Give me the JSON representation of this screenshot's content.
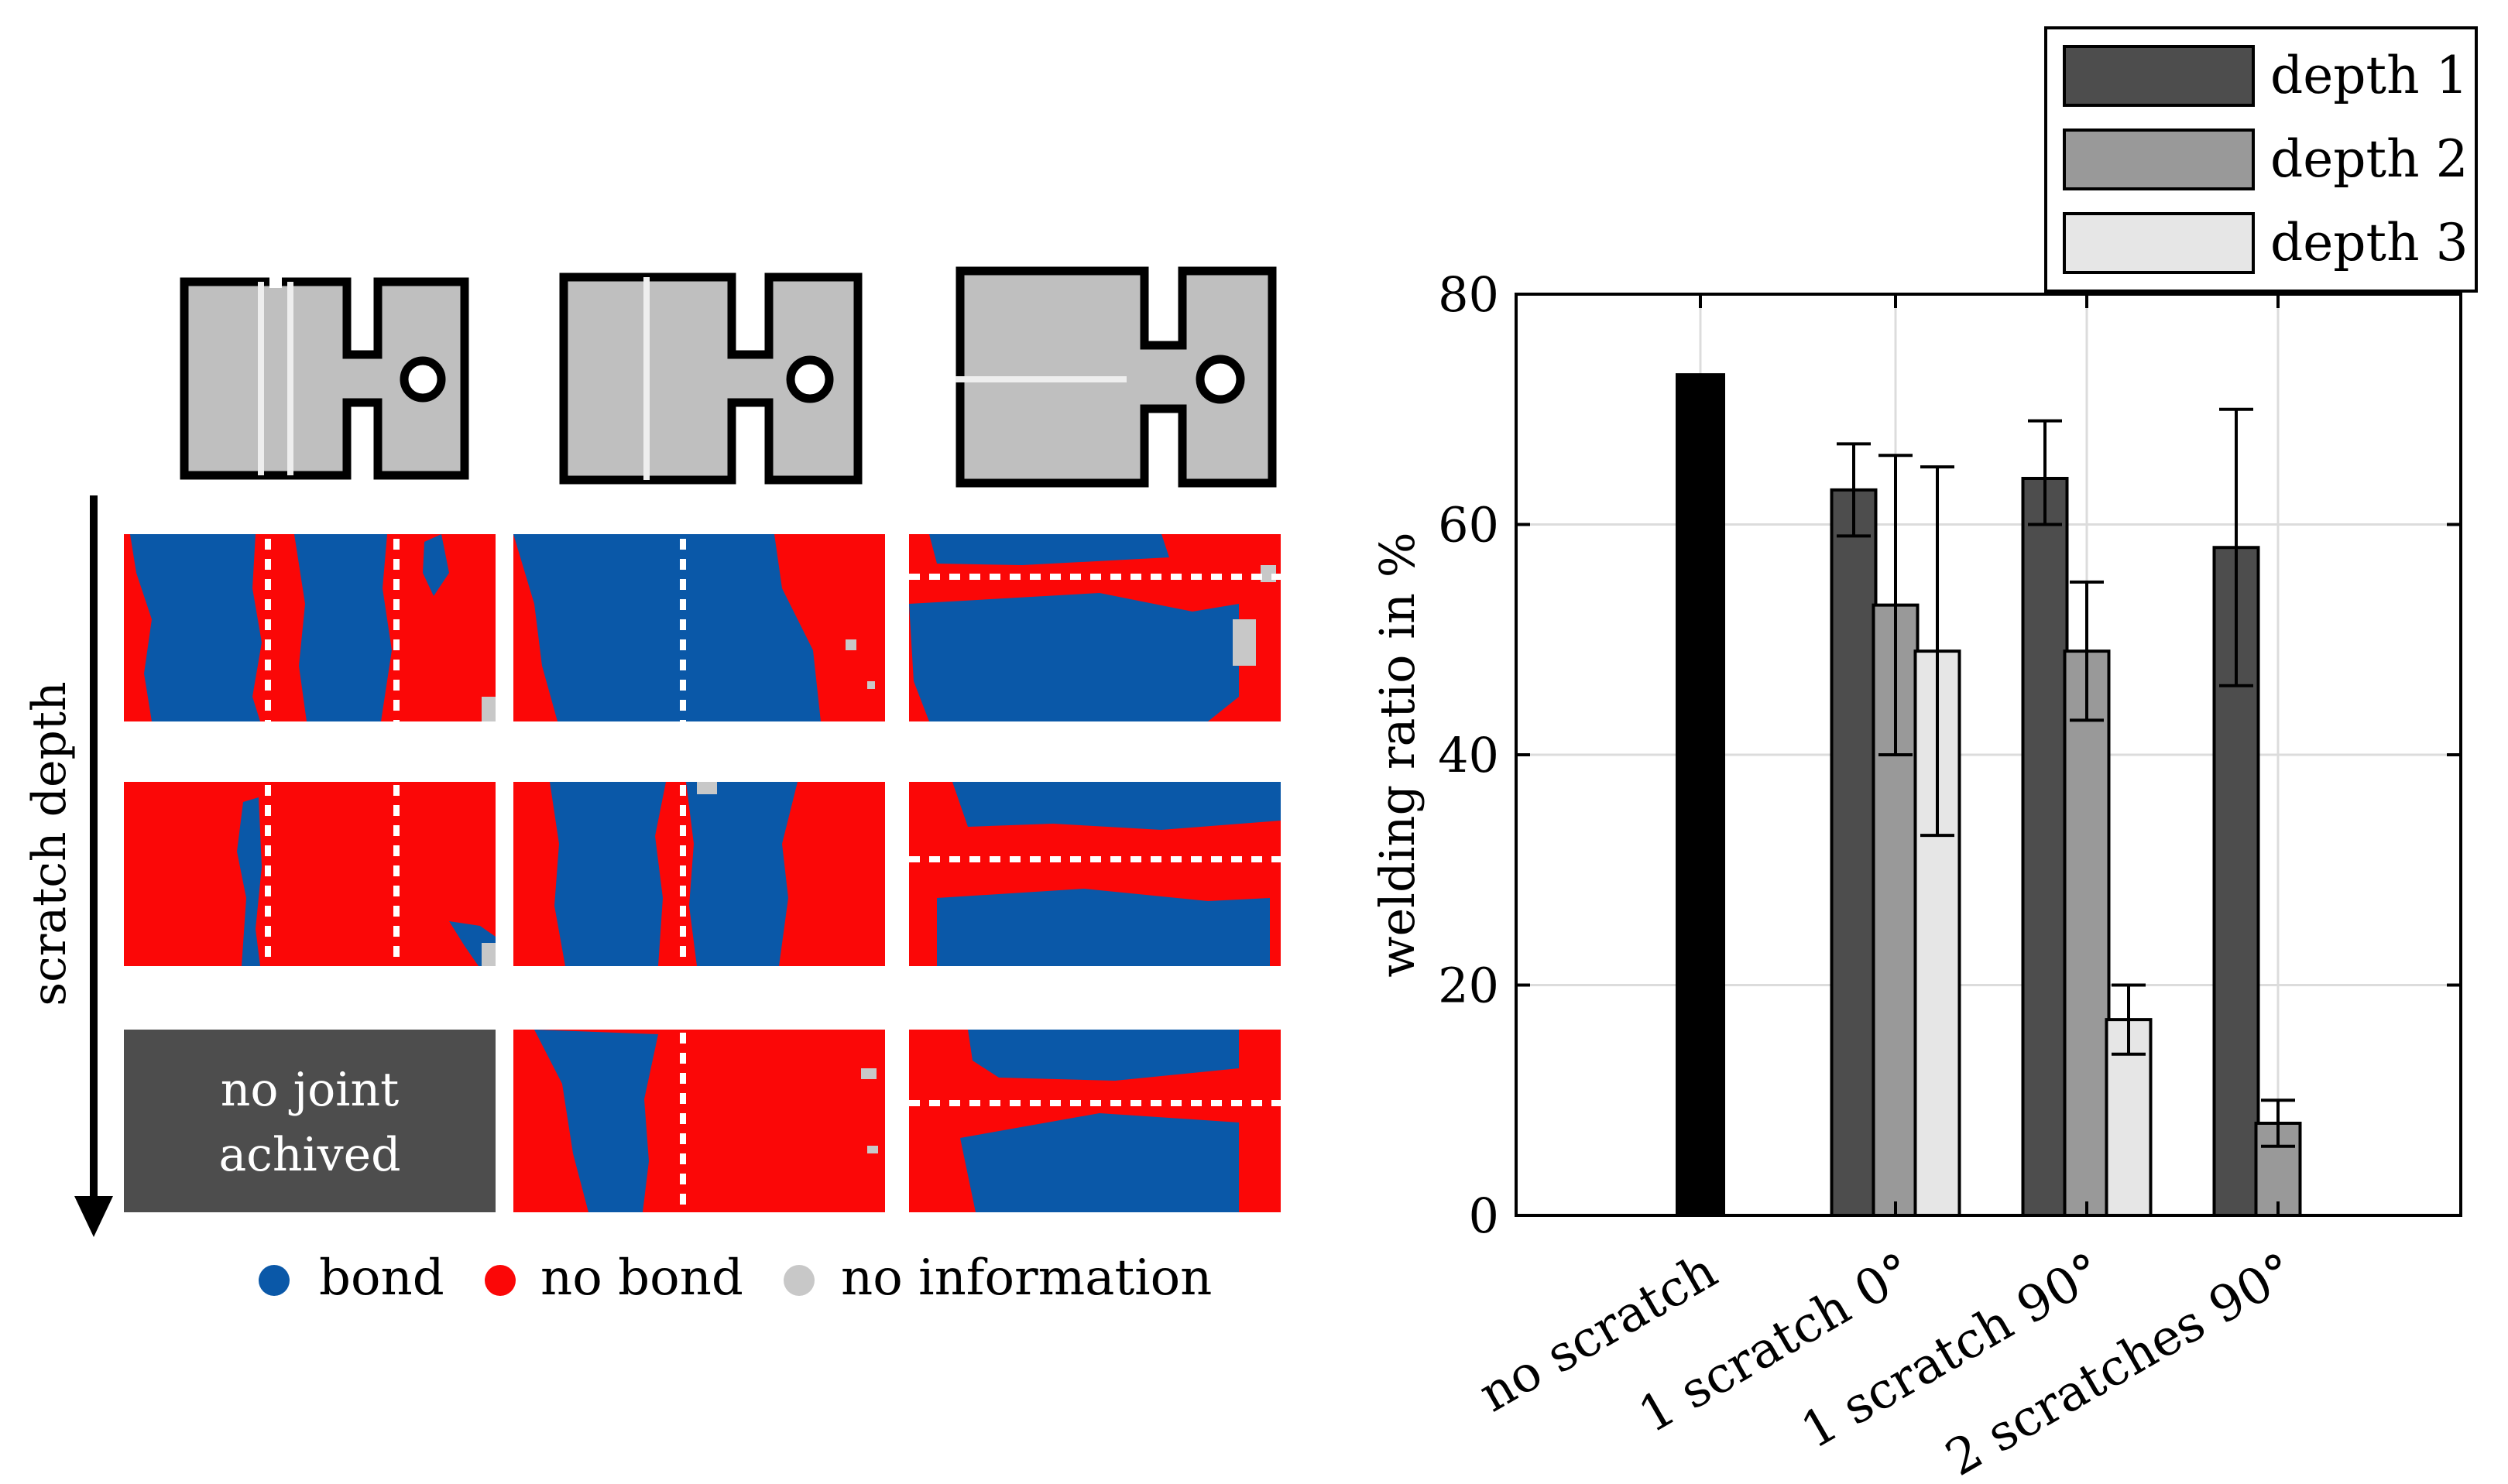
{
  "left_panel": {
    "arrow_label": "scratch depth",
    "no_joint_label_line1": "no joint",
    "no_joint_label_line2": "achived",
    "legend": {
      "bond": "bond",
      "no_bond": "no bond",
      "no_information": "no information"
    },
    "colors": {
      "bond": "#0a58a8",
      "no_bond": "#fb0707",
      "no_information": "#c8c8c8",
      "specimen_fill": "#bfbfbf",
      "no_joint_box": "#4d4d4d"
    }
  },
  "chart_data": {
    "type": "bar",
    "title": "",
    "xlabel": "",
    "ylabel": "welding ratio in %",
    "ylim": [
      0,
      80
    ],
    "yticks": [
      0,
      20,
      40,
      60,
      80
    ],
    "grid": true,
    "legend_position": "top-right",
    "categories": [
      "no scratch",
      "1 scratch 0°",
      "1 scratch 90°",
      "2 scratches 90°"
    ],
    "reference": {
      "name": "no scratch",
      "value": 73,
      "color": "#000000"
    },
    "series": [
      {
        "name": "depth 1",
        "color": "#4d4d4d",
        "values": [
          null,
          63,
          64,
          58
        ],
        "err_low": [
          null,
          59,
          60,
          46
        ],
        "err_high": [
          null,
          67,
          69,
          70
        ]
      },
      {
        "name": "depth 2",
        "color": "#999999",
        "values": [
          null,
          53,
          49,
          8
        ],
        "err_low": [
          null,
          40,
          43,
          6
        ],
        "err_high": [
          null,
          66,
          55,
          10
        ]
      },
      {
        "name": "depth 3",
        "color": "#e6e6e6",
        "values": [
          null,
          49,
          17,
          null
        ],
        "err_low": [
          null,
          33,
          14,
          null
        ],
        "err_high": [
          null,
          65,
          20,
          null
        ]
      }
    ]
  }
}
